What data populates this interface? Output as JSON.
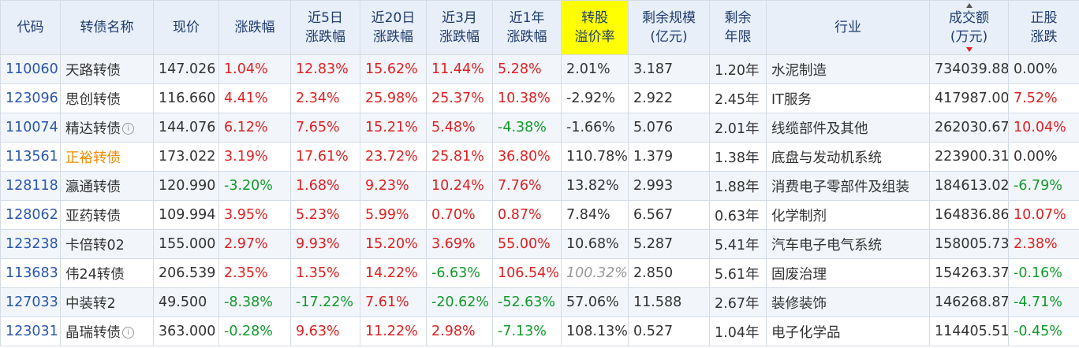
{
  "headers": {
    "code": "代码",
    "name": "转债名称",
    "price": "现价",
    "chg": "涨跌幅",
    "chg5_l1": "近5日",
    "chg5_l2": "涨跌幅",
    "chg20_l1": "近20日",
    "chg20_l2": "涨跌幅",
    "chg3m_l1": "近3月",
    "chg3m_l2": "涨跌幅",
    "chg1y_l1": "近1年",
    "chg1y_l2": "涨跌幅",
    "premium_l1": "转股",
    "premium_l2": "溢价率",
    "scale_l1": "剩余规模",
    "scale_l2": "(亿元)",
    "term_l1": "剩余",
    "term_l2": "年限",
    "industry": "行业",
    "volume_l1": "成交额",
    "volume_l2": "(万元)",
    "stock_l1": "正股",
    "stock_l2": "涨跌"
  },
  "rows": [
    {
      "code": "110060",
      "name": "天路转债",
      "info": false,
      "price": "147.026",
      "chg": "1.04%",
      "chg5": "12.83%",
      "chg20": "15.62%",
      "chg3m": "11.44%",
      "chg1y": "5.28%",
      "premium": "2.01%",
      "scale": "3.187",
      "term": "1.20年",
      "industry": "水泥制造",
      "volume": "734039.88",
      "stock": "0.00%"
    },
    {
      "code": "123096",
      "name": "思创转债",
      "info": false,
      "price": "116.660",
      "chg": "4.41%",
      "chg5": "2.34%",
      "chg20": "25.98%",
      "chg3m": "25.37%",
      "chg1y": "10.38%",
      "premium": "-2.92%",
      "scale": "2.922",
      "term": "2.45年",
      "industry": "IT服务",
      "volume": "417987.00",
      "stock": "7.52%"
    },
    {
      "code": "110074",
      "name": "精达转债",
      "info": true,
      "price": "144.076",
      "chg": "6.12%",
      "chg5": "7.65%",
      "chg20": "15.21%",
      "chg3m": "5.48%",
      "chg1y": "-4.38%",
      "premium": "-1.66%",
      "scale": "5.076",
      "term": "2.01年",
      "industry": "线缆部件及其他",
      "volume": "262030.67",
      "stock": "10.04%"
    },
    {
      "code": "113561",
      "name": "正裕转债",
      "info": false,
      "price": "173.022",
      "chg": "3.19%",
      "chg5": "17.61%",
      "chg20": "23.72%",
      "chg3m": "25.81%",
      "chg1y": "36.80%",
      "premium": "110.78%",
      "scale": "1.379",
      "term": "1.38年",
      "industry": "底盘与发动机系统",
      "volume": "223900.31",
      "stock": "0.00%"
    },
    {
      "code": "128118",
      "name": "瀛通转债",
      "info": false,
      "price": "120.990",
      "chg": "-3.20%",
      "chg5": "1.68%",
      "chg20": "9.23%",
      "chg3m": "10.24%",
      "chg1y": "7.76%",
      "premium": "13.82%",
      "scale": "2.993",
      "term": "1.88年",
      "industry": "消费电子零部件及组装",
      "volume": "184613.02",
      "stock": "-6.79%"
    },
    {
      "code": "128062",
      "name": "亚药转债",
      "info": false,
      "price": "109.994",
      "chg": "3.95%",
      "chg5": "5.23%",
      "chg20": "5.99%",
      "chg3m": "0.70%",
      "chg1y": "0.87%",
      "premium": "7.84%",
      "scale": "6.567",
      "term": "0.63年",
      "industry": "化学制剂",
      "volume": "164836.86",
      "stock": "10.07%"
    },
    {
      "code": "123238",
      "name": "卡倍转02",
      "info": false,
      "price": "155.000",
      "chg": "2.97%",
      "chg5": "9.93%",
      "chg20": "15.20%",
      "chg3m": "3.69%",
      "chg1y": "55.00%",
      "premium": "10.68%",
      "scale": "5.287",
      "term": "5.41年",
      "industry": "汽车电子电气系统",
      "volume": "158005.73",
      "stock": "2.38%"
    },
    {
      "code": "113683",
      "name": "伟24转债",
      "info": false,
      "price": "206.539",
      "chg": "2.35%",
      "chg5": "1.35%",
      "chg20": "14.22%",
      "chg3m": "-6.63%",
      "chg1y": "106.54%",
      "premium": "100.32%",
      "scale": "2.850",
      "term": "5.61年",
      "industry": "固废治理",
      "volume": "154263.37",
      "stock": "-0.16%"
    },
    {
      "code": "127033",
      "name": "中装转2",
      "info": false,
      "price": "49.500",
      "chg": "-8.38%",
      "chg5": "-17.22%",
      "chg20": "7.61%",
      "chg3m": "-20.62%",
      "chg1y": "-52.63%",
      "premium": "57.06%",
      "scale": "11.588",
      "term": "2.67年",
      "industry": "装修装饰",
      "volume": "146268.87",
      "stock": "-4.71%"
    },
    {
      "code": "123031",
      "name": "晶瑞转债",
      "info": true,
      "price": "363.000",
      "chg": "-0.28%",
      "chg5": "9.63%",
      "chg20": "11.22%",
      "chg3m": "2.98%",
      "chg1y": "-7.13%",
      "premium": "108.13%",
      "scale": "0.527",
      "term": "1.04年",
      "industry": "电子化学品",
      "volume": "114405.51",
      "stock": "-0.45%"
    }
  ],
  "info_glyph": "i",
  "styles": {
    "muted_premium_row": 7,
    "orange_name_row": 3,
    "highlight_header": "premium"
  }
}
